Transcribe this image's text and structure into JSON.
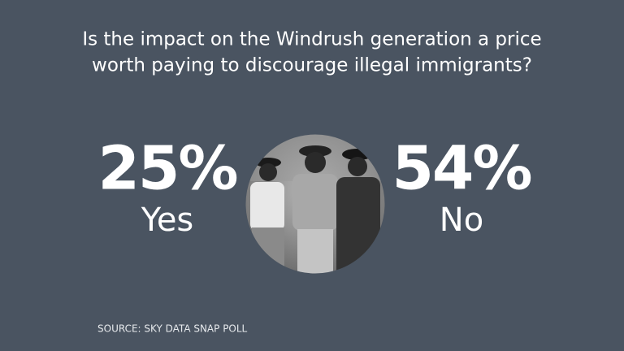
{
  "title": {
    "lines": [
      "Is the impact on the Windrush generation a price",
      "worth paying to discourage illegal immigrants?"
    ]
  },
  "results": [
    {
      "value": "25%",
      "label": "Yes"
    },
    {
      "value": "54%",
      "label": "No"
    }
  ],
  "source": "SOURCE: SKY DATA SNAP POLL"
}
